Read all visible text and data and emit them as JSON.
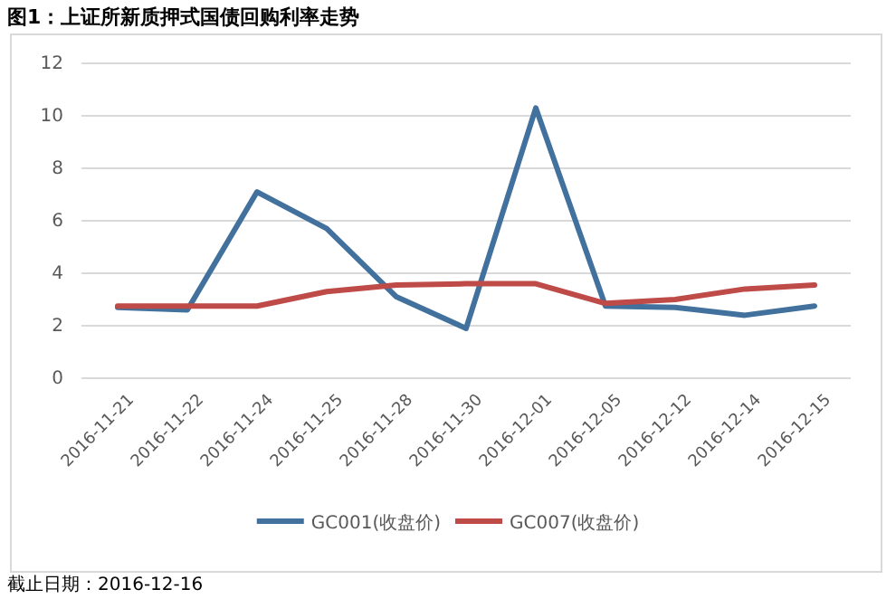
{
  "chart_data": {
    "type": "line",
    "title": "图1：上证所新质押式国债回购利率走势",
    "categories": [
      "2016-11-21",
      "2016-11-22",
      "2016-11-24",
      "2016-11-25",
      "2016-11-28",
      "2016-11-30",
      "2016-12-01",
      "2016-12-05",
      "2016-12-12",
      "2016-12-14",
      "2016-12-15"
    ],
    "series": [
      {
        "name": "GC001(收盘价)",
        "color": "#41719c",
        "values": [
          2.7,
          2.6,
          7.1,
          5.7,
          3.1,
          1.9,
          10.3,
          2.75,
          2.7,
          2.4,
          2.75
        ]
      },
      {
        "name": "GC007(收盘价)",
        "color": "#be4b48",
        "values": [
          2.75,
          2.75,
          2.75,
          3.3,
          3.55,
          3.6,
          3.6,
          2.85,
          3.0,
          3.4,
          3.55
        ]
      }
    ],
    "ylim": [
      0,
      12
    ],
    "yticks": [
      0,
      2,
      4,
      6,
      8,
      10,
      12
    ],
    "grid": "y",
    "legend": "bottom",
    "annotations": [
      "截止日期：2016-12-16"
    ]
  }
}
